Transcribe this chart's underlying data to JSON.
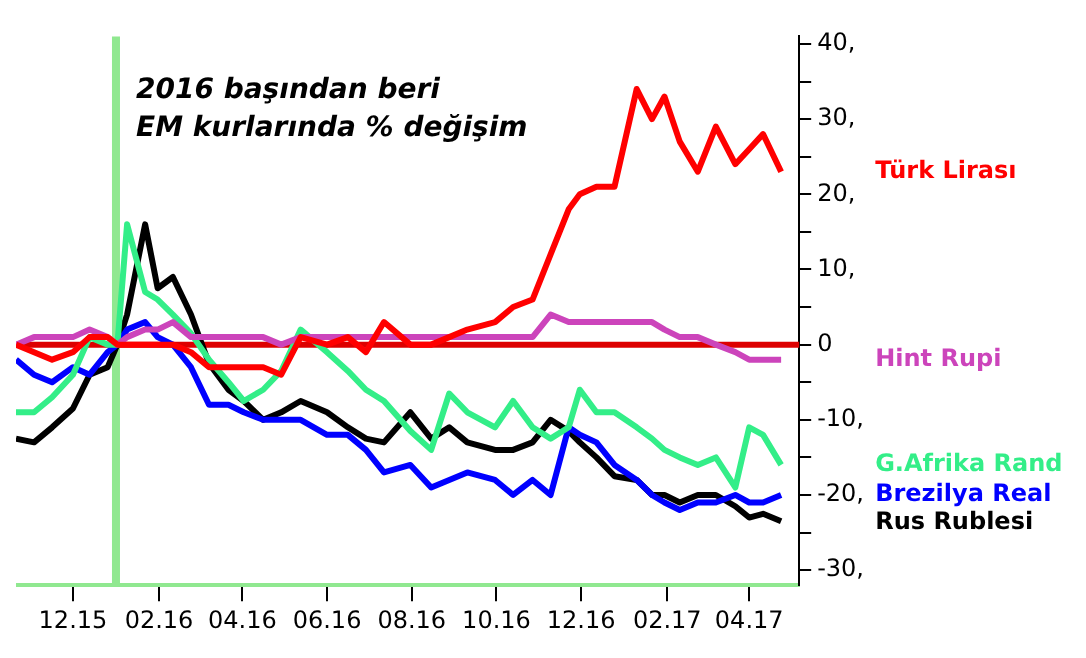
{
  "chart_data": {
    "type": "line",
    "title": "2016 başından beri\nEM kurlarında % değişim",
    "x": [
      "2015-10-21",
      "2015-11-03",
      "2015-11-16",
      "2015-12-01",
      "2015-12-13",
      "2015-12-26",
      "2016-01-02",
      "2016-01-09",
      "2016-01-22",
      "2016-01-31",
      "2016-02-11",
      "2016-02-24",
      "2016-03-08",
      "2016-03-22",
      "2016-04-02",
      "2016-04-16",
      "2016-04-29",
      "2016-05-13",
      "2016-06-01",
      "2016-06-16",
      "2016-06-29",
      "2016-07-12",
      "2016-07-31",
      "2016-08-15",
      "2016-08-28",
      "2016-09-10",
      "2016-09-30",
      "2016-10-13",
      "2016-10-27",
      "2016-11-09",
      "2016-11-22",
      "2016-11-30",
      "2016-12-12",
      "2016-12-25",
      "2017-01-10",
      "2017-01-21",
      "2017-01-30",
      "2017-02-10",
      "2017-02-23",
      "2017-03-08",
      "2017-03-22",
      "2017-04-01",
      "2017-04-11",
      "2017-04-24"
    ],
    "series": [
      {
        "name": "Türk Lirası",
        "color": "#ff0000",
        "values": [
          0,
          -1,
          -2,
          -1,
          1,
          1,
          0,
          0,
          0,
          0,
          0,
          -1,
          -3,
          -3,
          -3,
          -3,
          -4,
          1,
          0,
          1,
          -1,
          3,
          0,
          0,
          1,
          2,
          3,
          5,
          6,
          12,
          18,
          20,
          21,
          21,
          34,
          30,
          33,
          27,
          23,
          29,
          24,
          26,
          28,
          23
        ]
      },
      {
        "name": "Hint Rupi",
        "color": "#cc44bb",
        "values": [
          0,
          1,
          1,
          1,
          2,
          1,
          0,
          1,
          2,
          2,
          3,
          1,
          1,
          1,
          1,
          1,
          0,
          1,
          1,
          1,
          1,
          1,
          1,
          1,
          1,
          1,
          1,
          1,
          1,
          4,
          3,
          3,
          3,
          3,
          3,
          3,
          2,
          1,
          1,
          0,
          -1,
          -2,
          -2,
          -2
        ]
      },
      {
        "name": "G.Afrika Rand",
        "color": "#33ee88",
        "values": [
          -9,
          -9,
          -7,
          -4,
          1,
          0,
          0,
          16,
          7,
          6,
          4,
          1.5,
          -2,
          -5,
          -7.5,
          -6,
          -3.5,
          2,
          -1,
          -3.5,
          -6,
          -7.5,
          -11.5,
          -14,
          -6.5,
          -9,
          -11,
          -7.5,
          -11,
          -12.5,
          -11,
          -6,
          -9,
          -9,
          -11,
          -12.5,
          -14,
          -15,
          -16,
          -15,
          -19,
          -11,
          -12,
          -16
        ]
      },
      {
        "name": "Brezilya Real",
        "color": "#0000ff",
        "values": [
          -2,
          -4,
          -5,
          -3,
          -4,
          -1,
          0,
          2,
          3,
          1,
          0,
          -3,
          -8,
          -8,
          -9,
          -10,
          -10,
          -10,
          -12,
          -12,
          -14,
          -17,
          -16,
          -19,
          -18,
          -17,
          -18,
          -20,
          -18,
          -20,
          -11,
          -12,
          -13,
          -16,
          -18,
          -20,
          -21,
          -22,
          -21,
          -21,
          -20,
          -21,
          -21,
          -20
        ]
      },
      {
        "name": "Rus Rublesi",
        "color": "#000000",
        "values": [
          -12.5,
          -13,
          -11,
          -8.5,
          -4,
          -3,
          0,
          4,
          16,
          7.5,
          9,
          4,
          -2.5,
          -6,
          -7.5,
          -10,
          -9,
          -7.5,
          -9,
          -11,
          -12.5,
          -13,
          -9,
          -12.5,
          -11,
          -13,
          -14,
          -14,
          -13,
          -10,
          -11.5,
          -13,
          -15,
          -17.5,
          -18,
          -20,
          -20,
          -21,
          -20,
          -20,
          -21.5,
          -23,
          -22.5,
          -23.5
        ]
      }
    ],
    "xlim": [
      "2015-10-21",
      "2017-05-07"
    ],
    "xticks": [
      {
        "value": "2015-12-01",
        "label": "12.15"
      },
      {
        "value": "2016-02-01",
        "label": "02.16"
      },
      {
        "value": "2016-04-01",
        "label": "04.16"
      },
      {
        "value": "2016-06-01",
        "label": "06.16"
      },
      {
        "value": "2016-08-01",
        "label": "08.16"
      },
      {
        "value": "2016-10-01",
        "label": "10.16"
      },
      {
        "value": "2016-12-01",
        "label": "12.16"
      },
      {
        "value": "2017-02-01",
        "label": "02.17"
      },
      {
        "value": "2017-04-01",
        "label": "04.17"
      }
    ],
    "ylim": [
      -32,
      41
    ],
    "yticks": [
      {
        "value": -30,
        "label": "-30,"
      },
      {
        "value": -25,
        "label": null
      },
      {
        "value": -20,
        "label": "-20,"
      },
      {
        "value": -15,
        "label": null
      },
      {
        "value": -10,
        "label": "-10,"
      },
      {
        "value": -5,
        "label": null
      },
      0,
      {
        "value": 5,
        "label": null
      },
      {
        "value": 10,
        "label": "10,"
      },
      {
        "value": 15,
        "label": null
      },
      {
        "value": 20,
        "label": "20,"
      },
      {
        "value": 25,
        "label": null
      },
      {
        "value": 30,
        "label": "30,"
      },
      {
        "value": 35,
        "label": null
      },
      {
        "value": 40,
        "label": "40,"
      }
    ],
    "ref_lines": [
      {
        "axis": "x",
        "value": "2016-01-01",
        "label": null,
        "color": "#90e890"
      },
      {
        "axis": "y",
        "value": 0,
        "label": null,
        "color": "#dd0000"
      }
    ],
    "grid": false,
    "legend": false,
    "marker": "none",
    "line_style": "solid"
  }
}
